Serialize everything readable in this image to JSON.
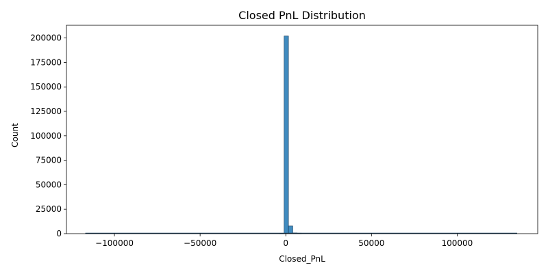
{
  "chart_data": {
    "type": "bar",
    "subtype": "histogram",
    "title": "Closed PnL Distribution",
    "xlabel": "Closed_PnL",
    "ylabel": "Count",
    "xlim": [
      -128000,
      147000
    ],
    "ylim": [
      0,
      213000
    ],
    "x_ticks": [
      -100000,
      -50000,
      0,
      50000,
      100000
    ],
    "x_tick_labels": [
      "−100000",
      "−50000",
      "0",
      "50000",
      "100000"
    ],
    "y_ticks": [
      0,
      25000,
      50000,
      75000,
      100000,
      125000,
      150000,
      175000,
      200000
    ],
    "y_tick_labels": [
      "0",
      "25000",
      "50000",
      "75000",
      "100000",
      "125000",
      "150000",
      "175000",
      "200000"
    ],
    "data_range": [
      -117000,
      135000
    ],
    "bin_width": 2520,
    "bins": [
      {
        "start": -3500,
        "end": -980,
        "count": 300
      },
      {
        "start": -980,
        "end": 1540,
        "count": 202000
      },
      {
        "start": 1540,
        "end": 4060,
        "count": 7800
      },
      {
        "start": 4060,
        "end": 6580,
        "count": 700
      },
      {
        "start": 6580,
        "end": 9100,
        "count": 500
      }
    ],
    "bar_color": "#1f77b4",
    "grid": false,
    "legend": false
  }
}
